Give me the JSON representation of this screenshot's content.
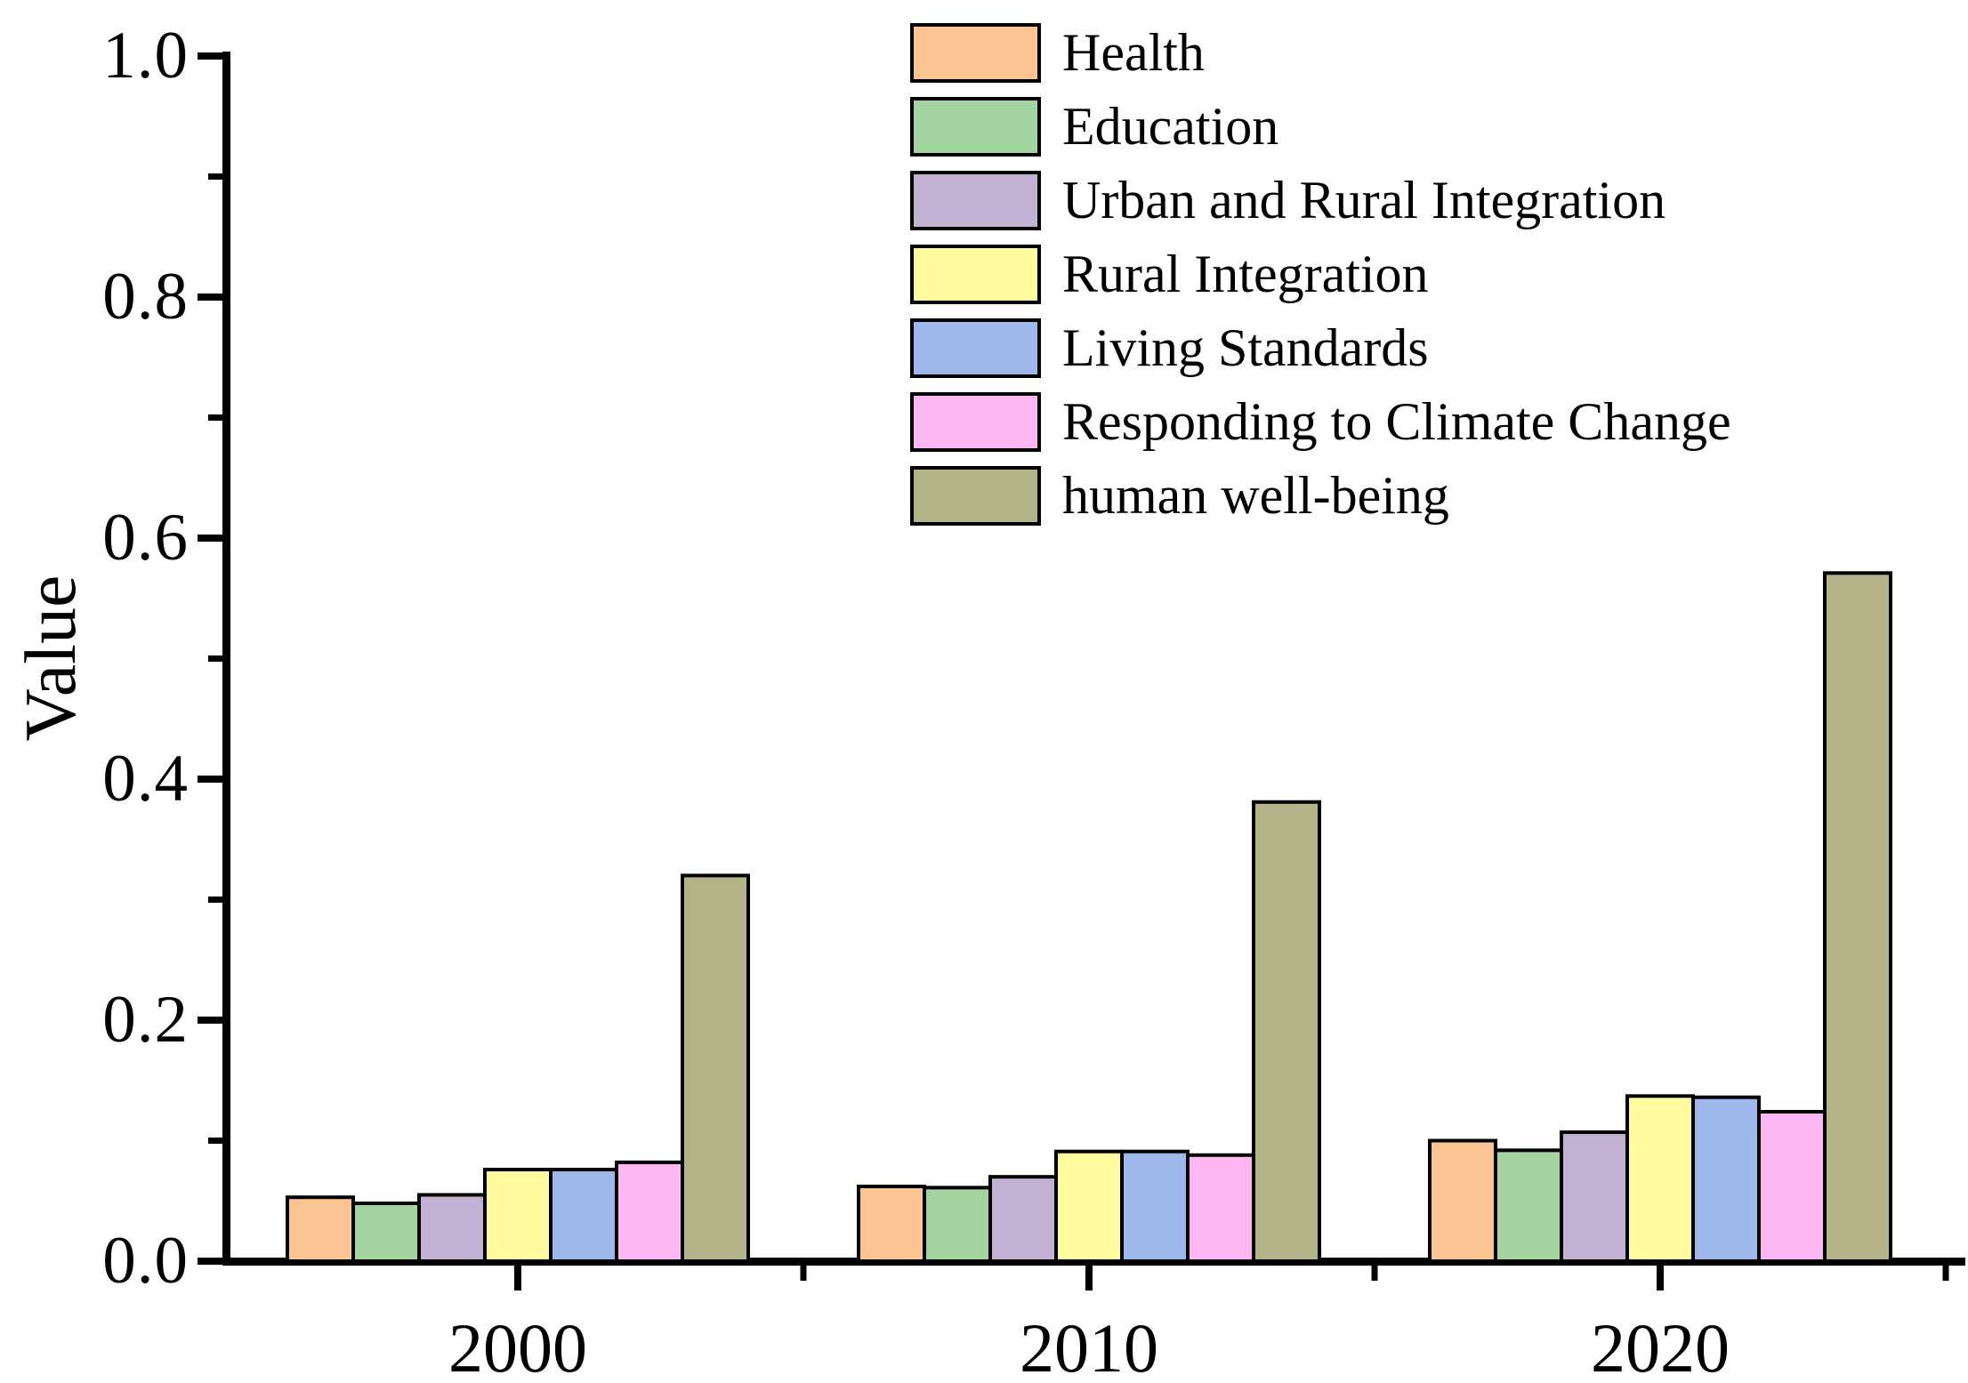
{
  "chart_data": {
    "type": "bar",
    "title": "",
    "xlabel": "",
    "ylabel": "Value",
    "categories": [
      "2000",
      "2010",
      "2020"
    ],
    "ylim": [
      0.0,
      1.0
    ],
    "y_major_tick_values": [
      0.0,
      0.2,
      0.4,
      0.6,
      0.8,
      1.0
    ],
    "y_major_tick_labels": [
      "0.0",
      "0.2",
      "0.4",
      "0.6",
      "0.8",
      "1.0"
    ],
    "y_minor_tick_values": [
      0.1,
      0.3,
      0.5,
      0.7,
      0.9
    ],
    "grid": false,
    "legend_position": "upper-center-right",
    "axis_color": "#000000",
    "bar_edge_color": "#000000",
    "background_color": "#ffffff",
    "series": [
      {
        "name": "Health",
        "color": "#FBC493",
        "values": [
          0.053,
          0.062,
          0.1
        ]
      },
      {
        "name": "Education",
        "color": "#A4D5A1",
        "values": [
          0.048,
          0.061,
          0.092
        ]
      },
      {
        "name": "Urban and Rural Integration",
        "color": "#C3B1D4",
        "values": [
          0.055,
          0.07,
          0.107
        ]
      },
      {
        "name": "Rural Integration",
        "color": "#FEFC9E",
        "values": [
          0.076,
          0.091,
          0.137
        ]
      },
      {
        "name": "Living Standards",
        "color": "#9FB8EC",
        "values": [
          0.076,
          0.091,
          0.136
        ]
      },
      {
        "name": "Responding to Climate Change",
        "color": "#FCB7F2",
        "values": [
          0.082,
          0.088,
          0.124
        ]
      },
      {
        "name": "human well-being",
        "color": "#B2B389",
        "values": [
          0.32,
          0.381,
          0.571
        ]
      }
    ]
  }
}
